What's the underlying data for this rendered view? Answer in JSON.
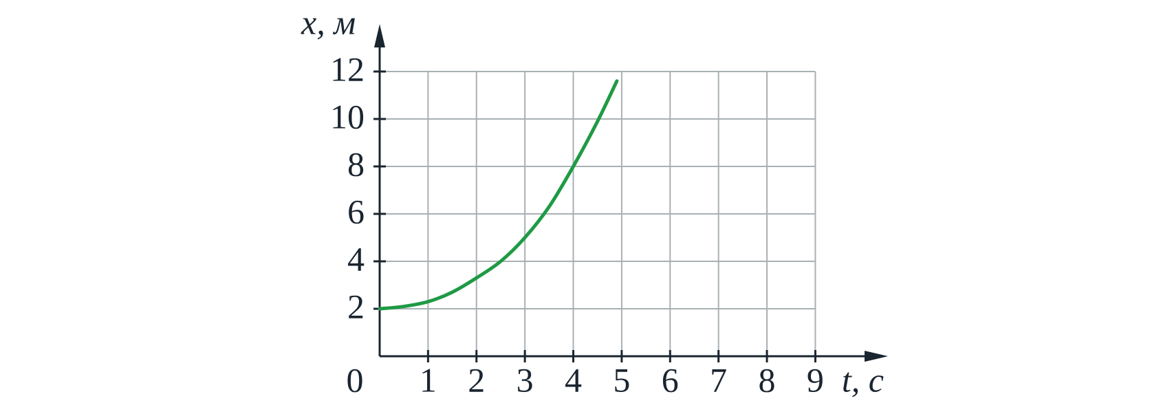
{
  "chart_data": {
    "type": "line",
    "x_label": "t, с",
    "y_label": "x, м",
    "x": [
      0,
      0.5,
      1,
      1.5,
      2,
      2.5,
      3,
      3.5,
      4,
      4.5,
      4.9
    ],
    "series": [
      {
        "color": "#1f9a45",
        "values": [
          2,
          2.1,
          2.3,
          2.7,
          3.3,
          4,
          5,
          6.3,
          8,
          9.9,
          11.6
        ]
      }
    ],
    "xlim": [
      0,
      10.5
    ],
    "ylim": [
      0,
      14
    ],
    "xticks": [
      0,
      1,
      2,
      3,
      4,
      5,
      6,
      7,
      8,
      9
    ],
    "yticks": [
      2,
      4,
      6,
      8,
      10,
      12
    ],
    "grid": true
  }
}
